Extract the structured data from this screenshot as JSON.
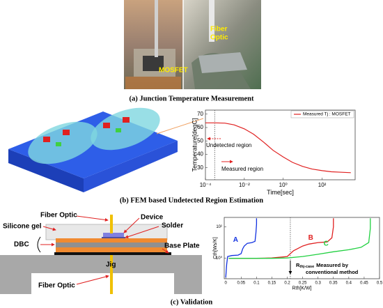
{
  "panel_a": {
    "labels": [
      "MOSFET",
      "Fiber",
      "Optic"
    ],
    "caption": "(a) Junction Temperature Measurement"
  },
  "panel_b": {
    "caption": "(b) FEM based Undetected Region Estimation"
  },
  "panel_c": {
    "labels": [
      "Fiber Optic",
      "Device",
      "Silicone gel",
      "Solder",
      "DBC",
      "Base Plate",
      "Jig",
      "Fiber Optic"
    ],
    "caption": "(c) Validation"
  },
  "chart_data": [
    {
      "type": "line",
      "xscale": "log",
      "x_label": "Time[sec]",
      "y_label": "Temperature[degC]",
      "x": [
        0.0001,
        0.0003,
        0.001,
        0.003,
        0.01,
        0.03,
        0.1,
        0.3,
        1,
        3,
        10,
        30,
        100,
        300,
        1000,
        3000
      ],
      "series": [
        {
          "name": "Measured Tj : MOSFET",
          "color": "#e02020",
          "values": [
            63.5,
            63.5,
            63.3,
            62,
            59,
            55,
            49,
            43,
            38,
            34,
            31,
            29,
            27.8,
            27,
            26.6,
            26.3
          ]
        }
      ],
      "xlim": [
        0.0001,
        5000
      ],
      "ylim": [
        21,
        73
      ],
      "xticks": [
        {
          "value": 0.0001,
          "label": "10⁻⁴"
        },
        {
          "value": 0.01,
          "label": "10⁻²"
        },
        {
          "value": 1,
          "label": "10⁰"
        },
        {
          "value": 100,
          "label": "10²"
        }
      ],
      "yticks": [
        30,
        40,
        50,
        60,
        70
      ],
      "legend": "upper right",
      "boundary_x": 0.0003,
      "annotations": [
        "Undetected region",
        "Measured region"
      ]
    },
    {
      "type": "line",
      "yscale": "log",
      "x_label": "Rth[K/W]",
      "y_label": "Cth[Ws/K]",
      "series": [
        {
          "name": "A",
          "color": "#1030e0",
          "x": [
            0,
            0.003,
            0.006,
            0.02,
            0.04,
            0.05,
            0.055,
            0.06,
            0.07,
            0.085,
            0.095,
            0.098,
            0.1,
            0.1
          ],
          "values": [
            0.06,
            0.4,
            1.3,
            1.5,
            1.6,
            2,
            4,
            6,
            9,
            10,
            12,
            40,
            150,
            350
          ]
        },
        {
          "name": "B",
          "color": "#e02020",
          "x": [
            0.01,
            0.05,
            0.1,
            0.15,
            0.2,
            0.22,
            0.25,
            0.27,
            0.3,
            0.33,
            0.345,
            0.35,
            0.35
          ],
          "values": [
            1,
            1,
            1,
            1.05,
            1.3,
            3,
            6,
            8,
            10,
            11,
            20,
            100,
            350
          ]
        },
        {
          "name": "C",
          "color": "#20d040",
          "x": [
            0.01,
            0.05,
            0.1,
            0.15,
            0.2,
            0.25,
            0.3,
            0.35,
            0.4,
            0.44,
            0.465,
            0.47,
            0.47
          ],
          "values": [
            1,
            1,
            1,
            1,
            1.05,
            1.3,
            1.8,
            2.6,
            3.5,
            5,
            10,
            80,
            350
          ]
        }
      ],
      "xlim": [
        -0.005,
        0.5
      ],
      "ylim": [
        0.05,
        400
      ],
      "xticks": [
        0,
        0.05,
        0.1,
        0.15,
        0.2,
        0.25,
        0.3,
        0.35,
        0.4,
        0.45,
        0.5
      ],
      "yticks": [
        {
          "value": 1,
          "label": "10⁰"
        },
        {
          "value": 100,
          "label": "10²"
        }
      ],
      "boundary_x": 0.21,
      "annotation": {
        "symbol": "R",
        "subscript": "thj-case",
        "text": "Measured by",
        "text2": "conventional method"
      }
    }
  ]
}
